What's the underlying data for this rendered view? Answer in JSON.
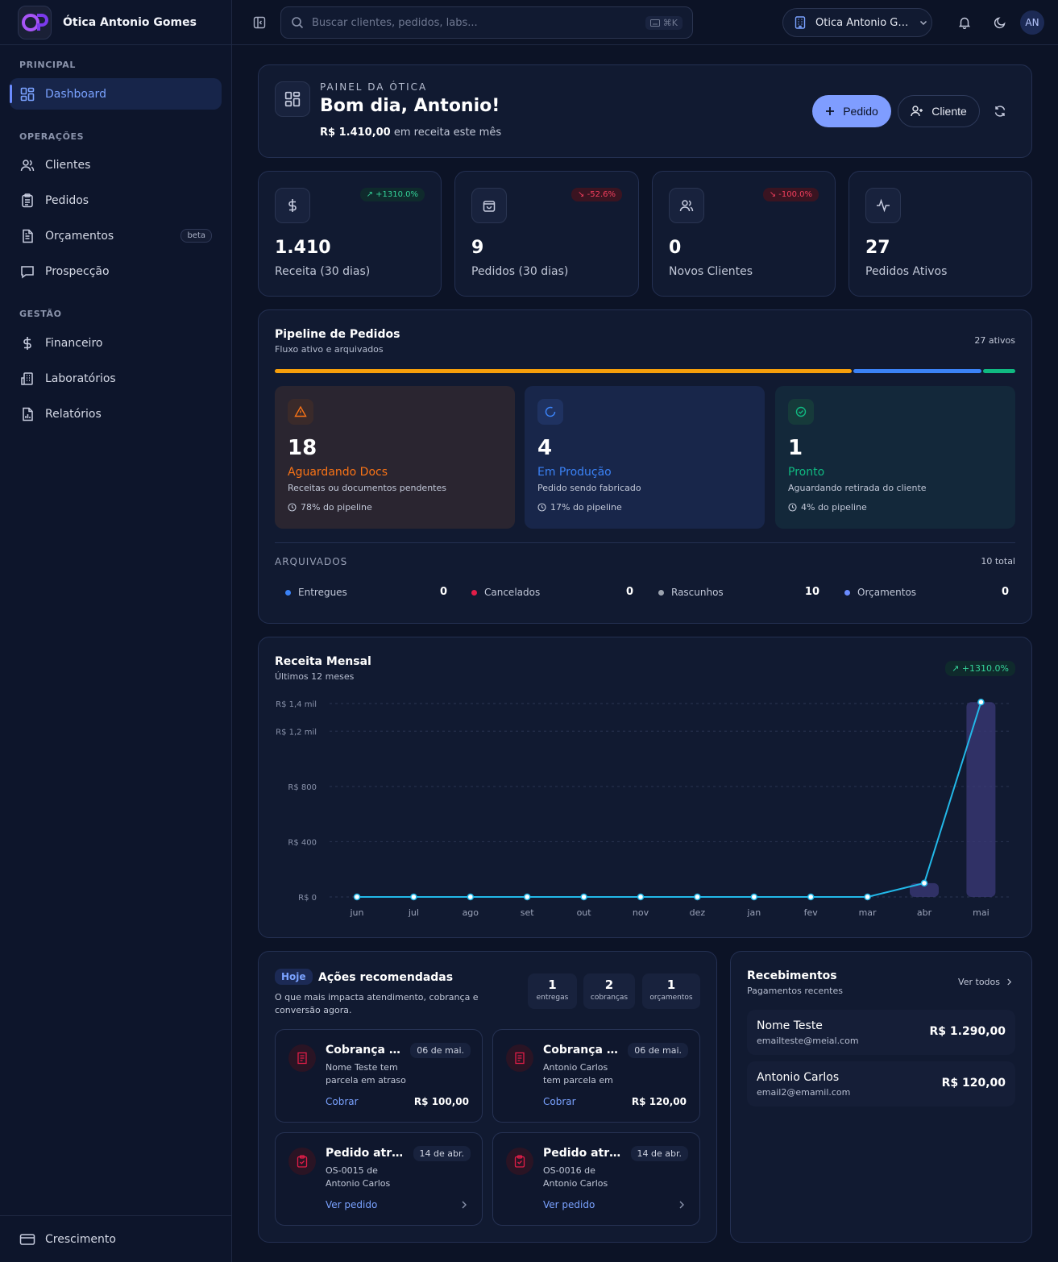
{
  "brand": {
    "name": "Ótica Antonio Gomes",
    "logo_text": "OP"
  },
  "sidebar": {
    "sections": [
      {
        "label": "PRINCIPAL",
        "items": [
          {
            "label": "Dashboard",
            "icon": "dashboard-icon",
            "active": true
          }
        ]
      },
      {
        "label": "OPERAÇÕES",
        "items": [
          {
            "label": "Clientes",
            "icon": "users-icon"
          },
          {
            "label": "Pedidos",
            "icon": "clipboard-icon"
          },
          {
            "label": "Orçamentos",
            "icon": "file-text-icon",
            "badge": "beta"
          },
          {
            "label": "Prospecção",
            "icon": "message-icon"
          }
        ]
      },
      {
        "label": "GESTÃO",
        "items": [
          {
            "label": "Financeiro",
            "icon": "dollar-icon"
          },
          {
            "label": "Laboratórios",
            "icon": "building-icon"
          },
          {
            "label": "Relatórios",
            "icon": "report-icon"
          }
        ]
      }
    ],
    "footer": {
      "label": "Crescimento",
      "icon": "credit-card-icon"
    }
  },
  "topbar": {
    "search_placeholder": "Buscar clientes, pedidos, labs...",
    "search_shortcut": "⌘K",
    "store_selector": "Ótica Antonio Gomes",
    "avatar_initials": "AN"
  },
  "hero": {
    "eyebrow": "PAINEL DA ÓTICA",
    "greeting": "Bom dia, Antonio!",
    "revenue_amount": "R$ 1.410,00",
    "revenue_suffix": "em receita este mês",
    "btn_pedido": "Pedido",
    "btn_cliente": "Cliente"
  },
  "kpis": [
    {
      "value": "1.410",
      "label": "Receita (30 dias)",
      "badge": "+1310.0%",
      "trend": "up",
      "icon": "dollar-icon"
    },
    {
      "value": "9",
      "label": "Pedidos (30 dias)",
      "badge": "-52.6%",
      "trend": "down",
      "icon": "shopping-bag-icon"
    },
    {
      "value": "0",
      "label": "Novos Clientes",
      "badge": "-100.0%",
      "trend": "down",
      "icon": "users-icon"
    },
    {
      "value": "27",
      "label": "Pedidos Ativos",
      "badge": "",
      "trend": "",
      "icon": "activity-icon"
    }
  ],
  "pipeline": {
    "title": "Pipeline de Pedidos",
    "subtitle": "Fluxo ativo e arquivados",
    "active_count": "27 ativos",
    "bar_fractions": [
      0.78,
      0.17,
      0.04
    ],
    "stages": [
      {
        "count": "18",
        "name": "Aguardando Docs",
        "desc": "Receitas ou documentos pendentes",
        "pct": "78% do pipeline",
        "color": "#f97316",
        "icon": "alert-triangle-icon"
      },
      {
        "count": "4",
        "name": "Em Produção",
        "desc": "Pedido sendo fabricado",
        "pct": "17% do pipeline",
        "color": "#3b82f6",
        "icon": "loader-icon"
      },
      {
        "count": "1",
        "name": "Pronto",
        "desc": "Aguardando retirada do cliente",
        "pct": "4% do pipeline",
        "color": "#10b981",
        "icon": "check-circle-icon"
      }
    ],
    "archived_label": "ARQUIVADOS",
    "archived_total": "10 total",
    "archived": [
      {
        "label": "Entregues",
        "value": "0",
        "color": "#3b82f6"
      },
      {
        "label": "Cancelados",
        "value": "0",
        "color": "#e11d48"
      },
      {
        "label": "Rascunhos",
        "value": "10",
        "color": "#9ca3af"
      },
      {
        "label": "Orçamentos",
        "value": "0",
        "color": "#6b8cff"
      }
    ]
  },
  "revenue": {
    "title": "Receita Mensal",
    "subtitle": "Últimos 12 meses",
    "badge": "+1310.0%"
  },
  "chart_data": {
    "type": "line",
    "categories": [
      "jun",
      "jul",
      "ago",
      "set",
      "out",
      "nov",
      "dez",
      "jan",
      "fev",
      "mar",
      "abr",
      "mai"
    ],
    "series": [
      {
        "values": [
          0,
          0,
          0,
          0,
          0,
          0,
          0,
          0,
          0,
          0,
          100,
          1410
        ]
      }
    ],
    "y_ticks": [
      0,
      400,
      800,
      1200,
      1400
    ],
    "y_tick_labels": [
      "R$ 0",
      "R$ 400",
      "R$ 800",
      "R$ 1,2 mil",
      "R$ 1,4 mil"
    ],
    "ylim": [
      0,
      1400
    ],
    "grid": true,
    "line_color": "#22b8e8",
    "bar_color": "#3b3a78"
  },
  "actions": {
    "today_badge": "Hoje",
    "title": "Ações recomendadas",
    "subtitle": "O que mais impacta atendimento, cobrança e conversão agora.",
    "stats": [
      {
        "n": "1",
        "t": "entregas"
      },
      {
        "n": "2",
        "t": "cobranças"
      },
      {
        "n": "1",
        "t": "orçamentos"
      }
    ],
    "items": [
      {
        "title": "Cobrança vencida",
        "date": "06 de mai.",
        "desc": "Nome Teste tem parcela em atraso",
        "link": "Cobrar",
        "value": "R$ 100,00",
        "icon": "receipt-icon"
      },
      {
        "title": "Cobrança vencida",
        "date": "06 de mai.",
        "desc": "Antonio Carlos tem parcela em atraso",
        "link": "Cobrar",
        "value": "R$ 120,00",
        "icon": "receipt-icon"
      },
      {
        "title": "Pedido atrasado",
        "date": "14 de abr.",
        "desc": "OS-0015 de Antonio Carlos",
        "link": "Ver pedido",
        "value": "",
        "icon": "clipboard-check-icon"
      },
      {
        "title": "Pedido atrasado",
        "date": "14 de abr.",
        "desc": "OS-0016 de Antonio Carlos",
        "link": "Ver pedido",
        "value": "",
        "icon": "clipboard-check-icon"
      }
    ]
  },
  "receipts": {
    "title": "Recebimentos",
    "subtitle": "Pagamentos recentes",
    "see_all": "Ver todos",
    "items": [
      {
        "name": "Nome Teste",
        "email": "emailteste@meial.com",
        "value": "R$ 1.290,00"
      },
      {
        "name": "Antonio Carlos",
        "email": "email2@emamil.com",
        "value": "R$ 120,00"
      }
    ]
  }
}
